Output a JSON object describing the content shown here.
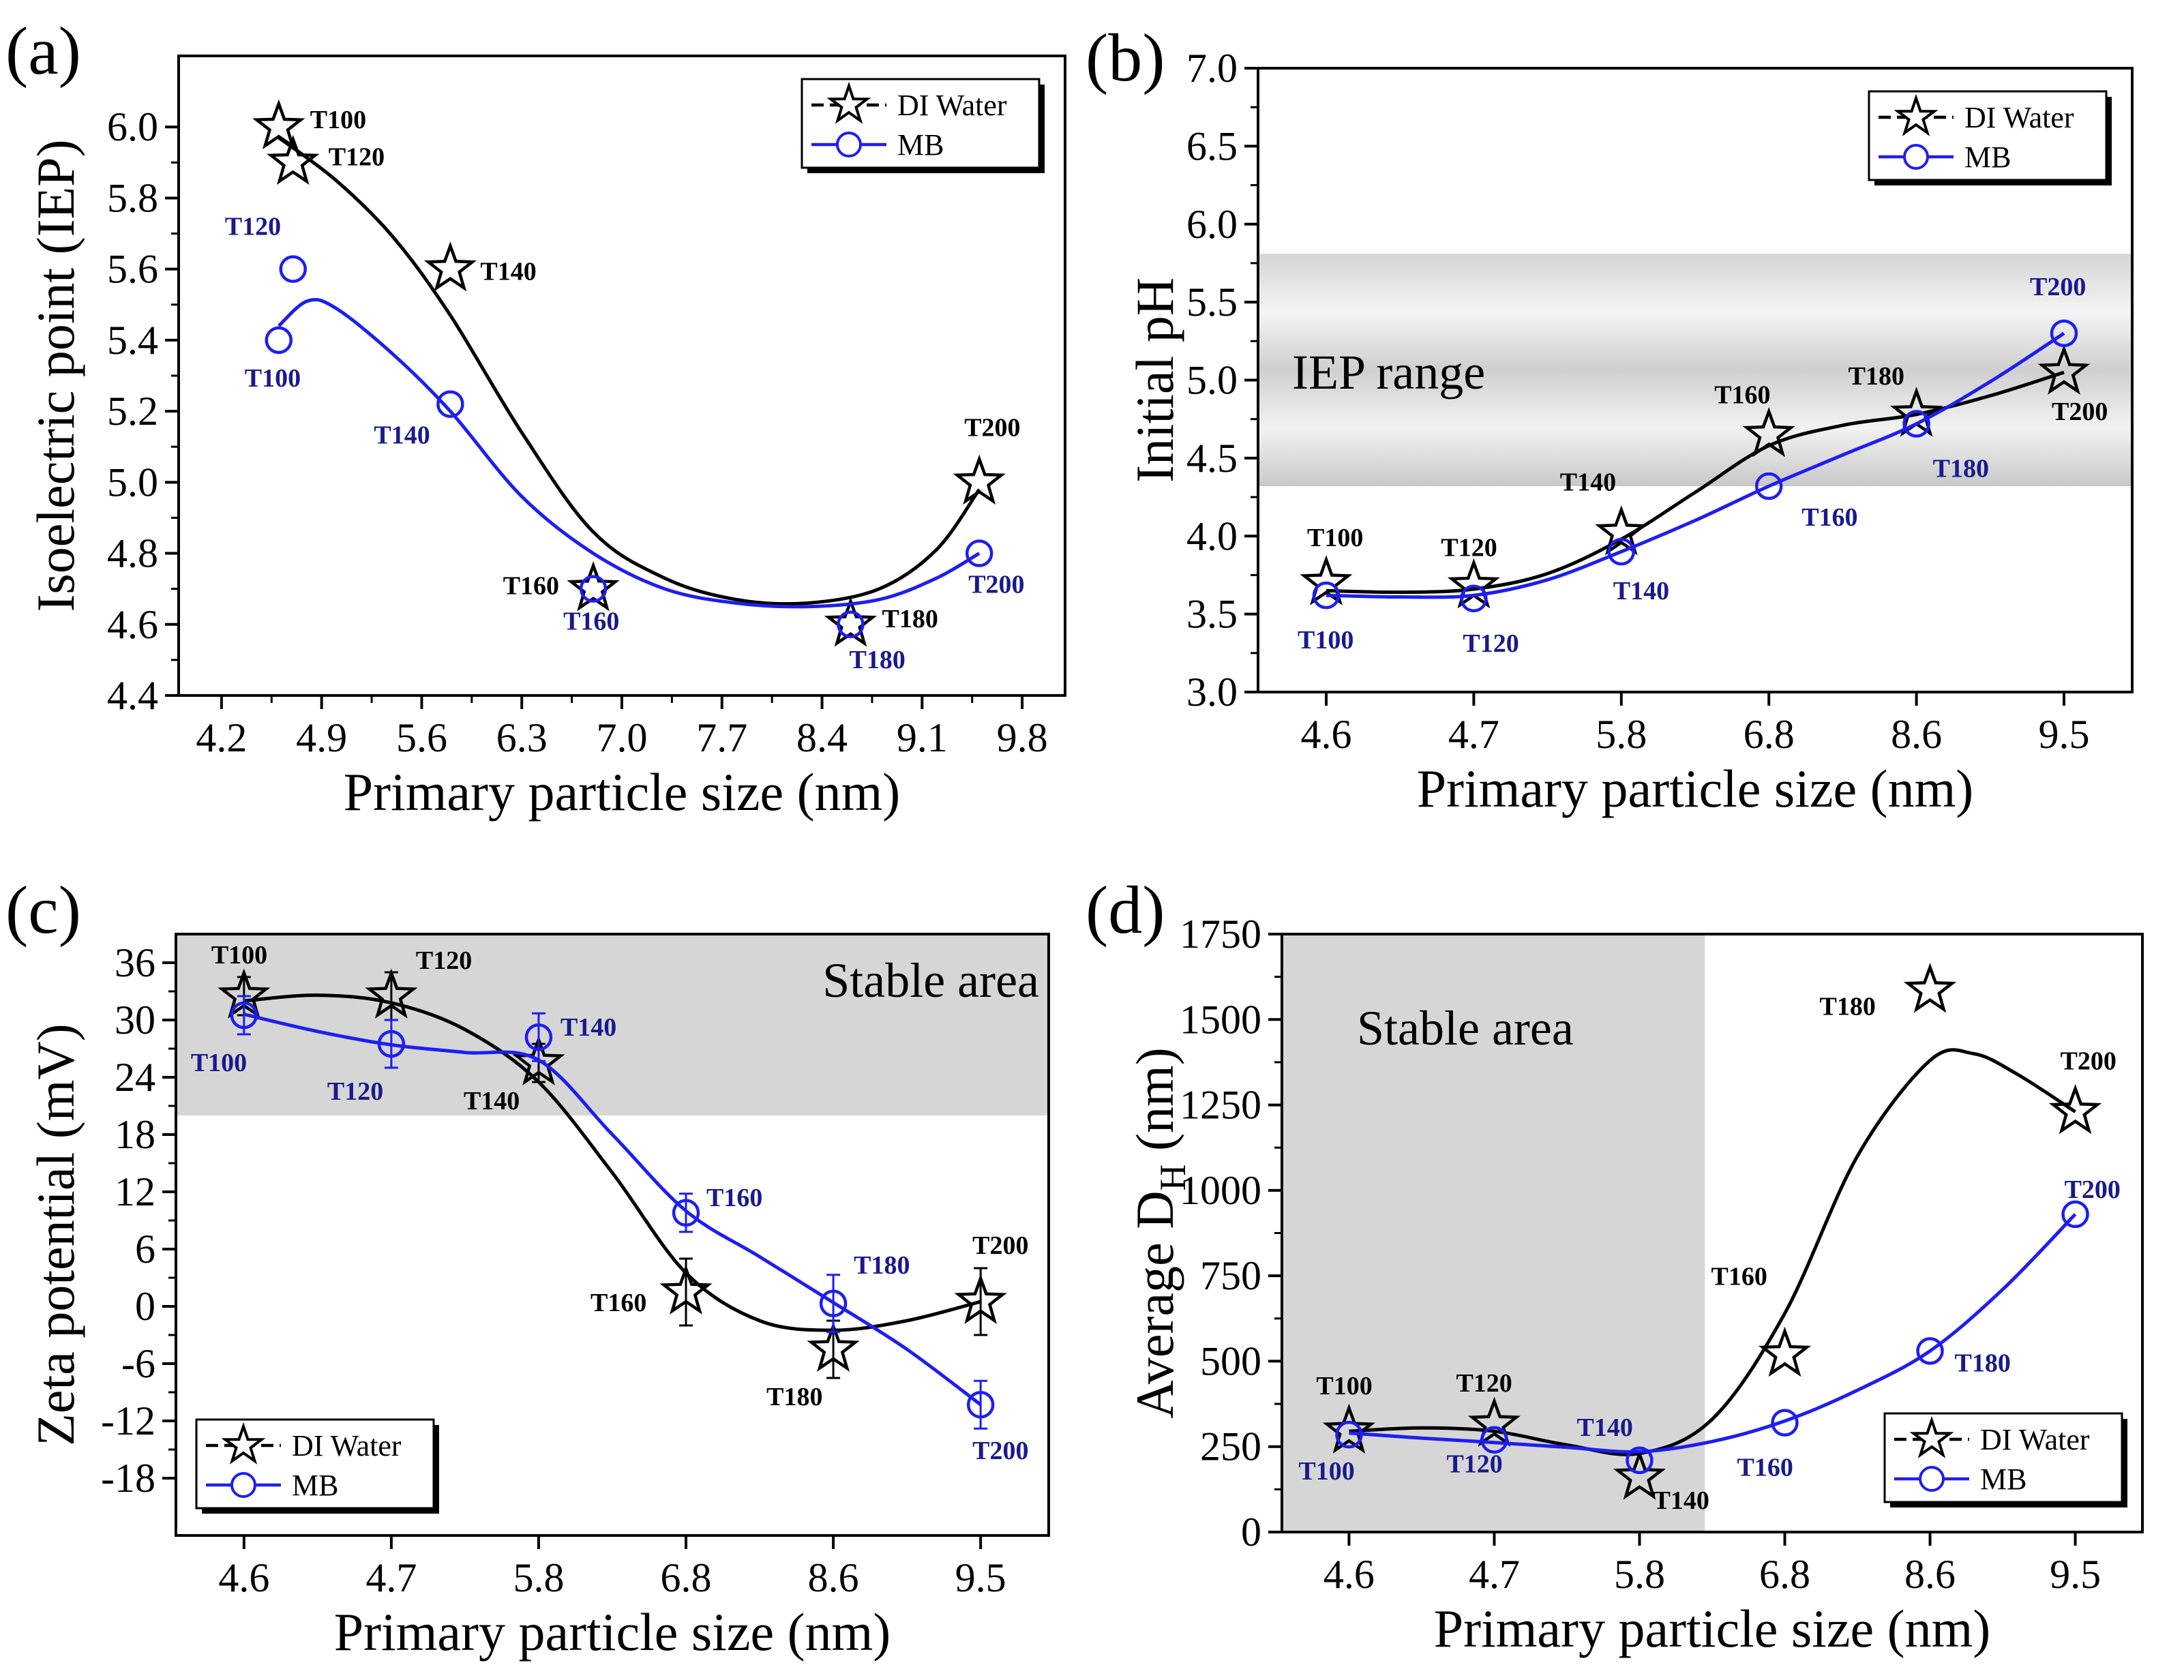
{
  "figure": {
    "colors": {
      "di": "#000000",
      "mb": "#1e1ef0",
      "mb_label": "#1a1a8c",
      "shade": "#d6d6d6"
    },
    "icons": {
      "di_marker": "star-icon",
      "mb_marker": "circle-icon"
    }
  },
  "chart_data": [
    {
      "panel": "(a)",
      "type": "line",
      "xlabel": "Primary particle size (nm)",
      "ylabel": "Isoelectric point (IEP)",
      "xlim": [
        3.9,
        10.1
      ],
      "ylim": [
        4.4,
        6.2
      ],
      "xticks": [
        4.2,
        4.9,
        5.6,
        6.3,
        7.0,
        7.7,
        8.4,
        9.1,
        9.8
      ],
      "xtick_labels": [
        "4.2",
        "4.9",
        "5.6",
        "6.3",
        "7.0",
        "7.7",
        "8.4",
        "9.1",
        "9.8"
      ],
      "yticks": [
        4.4,
        4.6,
        4.8,
        5.0,
        5.2,
        5.4,
        5.6,
        5.8,
        6.0
      ],
      "ytick_labels": [
        "4.4",
        "4.6",
        "4.8",
        "5.0",
        "5.2",
        "5.4",
        "5.6",
        "5.8",
        "6.0"
      ],
      "legend": {
        "position": "top-right",
        "entries": [
          "DI Water",
          "MB"
        ]
      },
      "series": [
        {
          "name": "DI Water",
          "marker": "star",
          "color": "#000000",
          "x": [
            4.6,
            4.7,
            5.8,
            6.8,
            8.6,
            9.5
          ],
          "y": [
            6.0,
            5.9,
            5.6,
            4.7,
            4.6,
            5.0
          ],
          "labels": [
            "T100",
            "T120",
            "T140",
            "T160",
            "T180",
            "T200"
          ],
          "curve": [
            [
              4.6,
              5.97
            ],
            [
              5.0,
              5.85
            ],
            [
              5.4,
              5.69
            ],
            [
              5.8,
              5.47
            ],
            [
              6.3,
              5.14
            ],
            [
              6.8,
              4.86
            ],
            [
              7.3,
              4.73
            ],
            [
              7.8,
              4.67
            ],
            [
              8.3,
              4.66
            ],
            [
              8.8,
              4.7
            ],
            [
              9.2,
              4.81
            ],
            [
              9.5,
              4.98
            ]
          ]
        },
        {
          "name": "MB",
          "marker": "circle",
          "color": "#1e1ef0",
          "x": [
            4.6,
            4.7,
            5.8,
            6.8,
            8.6,
            9.5
          ],
          "y": [
            5.4,
            5.6,
            5.22,
            4.7,
            4.6,
            4.8
          ],
          "labels": [
            "T100",
            "T120",
            "T140",
            "T160",
            "T180",
            "T200"
          ],
          "curve": [
            [
              4.6,
              5.44
            ],
            [
              4.8,
              5.51
            ],
            [
              5.0,
              5.49
            ],
            [
              5.4,
              5.36
            ],
            [
              5.8,
              5.2
            ],
            [
              6.3,
              4.96
            ],
            [
              6.8,
              4.8
            ],
            [
              7.3,
              4.7
            ],
            [
              7.8,
              4.66
            ],
            [
              8.3,
              4.65
            ],
            [
              8.8,
              4.67
            ],
            [
              9.2,
              4.73
            ],
            [
              9.5,
              4.8
            ]
          ]
        }
      ]
    },
    {
      "panel": "(b)",
      "type": "line",
      "xlabel": "Primary particle size (nm)",
      "ylabel": "Initial pH",
      "categorical_x": true,
      "categories": [
        "4.6",
        "4.7",
        "5.8",
        "6.8",
        "8.6",
        "9.5"
      ],
      "ylim": [
        3.0,
        7.0
      ],
      "yticks": [
        3.0,
        3.5,
        4.0,
        4.5,
        5.0,
        5.5,
        6.0,
        6.5,
        7.0
      ],
      "ytick_labels": [
        "3.0",
        "3.5",
        "4.0",
        "4.5",
        "5.0",
        "5.5",
        "6.0",
        "6.5",
        "7.0"
      ],
      "region": {
        "label": "IEP range",
        "y_from": 4.32,
        "y_to": 5.81
      },
      "legend": {
        "position": "top-right",
        "entries": [
          "DI Water",
          "MB"
        ]
      },
      "series": [
        {
          "name": "DI Water",
          "marker": "star",
          "color": "#000000",
          "y": [
            3.7,
            3.68,
            4.02,
            4.65,
            4.78,
            5.05
          ],
          "labels": [
            "T100",
            "T120",
            "T140",
            "T160",
            "T180",
            "T200"
          ],
          "curve": [
            [
              0,
              3.65
            ],
            [
              0.5,
              3.64
            ],
            [
              1,
              3.66
            ],
            [
              1.5,
              3.76
            ],
            [
              2,
              3.98
            ],
            [
              2.5,
              4.28
            ],
            [
              3,
              4.58
            ],
            [
              3.5,
              4.71
            ],
            [
              4,
              4.78
            ],
            [
              4.5,
              4.9
            ],
            [
              5,
              5.05
            ]
          ]
        },
        {
          "name": "MB",
          "marker": "circle",
          "color": "#1e1ef0",
          "y": [
            3.62,
            3.6,
            3.9,
            4.32,
            4.72,
            5.3
          ],
          "labels": [
            "T100",
            "T120",
            "T140",
            "T160",
            "T180",
            "T200"
          ],
          "curve": [
            [
              0,
              3.62
            ],
            [
              0.5,
              3.61
            ],
            [
              1,
              3.62
            ],
            [
              1.5,
              3.72
            ],
            [
              2,
              3.9
            ],
            [
              2.5,
              4.1
            ],
            [
              3,
              4.32
            ],
            [
              3.5,
              4.52
            ],
            [
              4,
              4.72
            ],
            [
              4.5,
              4.99
            ],
            [
              5,
              5.3
            ]
          ]
        }
      ]
    },
    {
      "panel": "(c)",
      "type": "line",
      "xlabel": "Primary particle size (nm)",
      "ylabel": "Zeta potential (mV)",
      "categorical_x": true,
      "categories": [
        "4.6",
        "4.7",
        "5.8",
        "6.8",
        "8.6",
        "9.5"
      ],
      "ylim": [
        -24,
        39
      ],
      "yticks": [
        -18,
        -12,
        -6,
        0,
        6,
        12,
        18,
        24,
        30,
        36
      ],
      "ytick_labels": [
        "-18",
        "-12",
        "-6",
        "0",
        "6",
        "12",
        "18",
        "24",
        "30",
        "36"
      ],
      "region": {
        "label": "Stable area",
        "y_from": 20,
        "y_to": 39
      },
      "legend": {
        "position": "bottom-left",
        "entries": [
          "DI Water",
          "MB"
        ]
      },
      "series": [
        {
          "name": "DI Water",
          "marker": "star",
          "color": "#000000",
          "y": [
            32.5,
            32.5,
            25.5,
            1.5,
            -4.5,
            0.5
          ],
          "error": [
            2,
            2.5,
            2,
            3.5,
            3,
            3.5
          ],
          "labels": [
            "T100",
            "T120",
            "T140",
            "T160",
            "T180",
            "T200"
          ],
          "curve": [
            [
              0,
              32.0
            ],
            [
              0.5,
              32.6
            ],
            [
              1,
              31.8
            ],
            [
              1.5,
              29.0
            ],
            [
              2,
              23.5
            ],
            [
              2.5,
              14.0
            ],
            [
              3,
              3.5
            ],
            [
              3.5,
              -1.5
            ],
            [
              4,
              -2.5
            ],
            [
              4.5,
              -1.5
            ],
            [
              5,
              0.5
            ]
          ]
        },
        {
          "name": "MB",
          "marker": "circle",
          "color": "#1e1ef0",
          "y": [
            30.5,
            27.5,
            28.2,
            9.8,
            0.3,
            -10.3
          ],
          "error": [
            2,
            2.5,
            2.5,
            2,
            3,
            2.5
          ],
          "labels": [
            "T100",
            "T120",
            "T140",
            "T160",
            "T180",
            "T200"
          ],
          "curve": [
            [
              0,
              30.6
            ],
            [
              0.5,
              28.8
            ],
            [
              1,
              27.4
            ],
            [
              1.5,
              26.6
            ],
            [
              2,
              25.8
            ],
            [
              2.5,
              18.0
            ],
            [
              3,
              10.0
            ],
            [
              3.5,
              5.2
            ],
            [
              4,
              0.4
            ],
            [
              4.5,
              -4.5
            ],
            [
              5,
              -10.3
            ]
          ]
        }
      ]
    },
    {
      "panel": "(d)",
      "type": "line",
      "xlabel": "Primary particle size (nm)",
      "ylabel": "Average D",
      "ylabel_sub": "H",
      "ylabel_unit": " (nm)",
      "categorical_x": true,
      "categories": [
        "4.6",
        "4.7",
        "5.8",
        "6.8",
        "8.6",
        "9.5"
      ],
      "ylim": [
        0,
        1750
      ],
      "yticks": [
        0,
        250,
        500,
        750,
        1000,
        1250,
        1500,
        1750
      ],
      "ytick_labels": [
        "0",
        "250",
        "500",
        "750",
        "1000",
        "1250",
        "1500",
        "1750"
      ],
      "region": {
        "label": "Stable area",
        "x_to_category": 2.45
      },
      "legend": {
        "position": "bottom-right",
        "entries": [
          "DI Water",
          "MB"
        ]
      },
      "series": [
        {
          "name": "DI Water",
          "marker": "star",
          "color": "#000000",
          "y": [
            295,
            315,
            160,
            520,
            1585,
            1230
          ],
          "labels": [
            "T100",
            "T120",
            "T140",
            "T160",
            "T180",
            "T200"
          ],
          "curve": [
            [
              0,
              295
            ],
            [
              0.5,
              305
            ],
            [
              1,
              295
            ],
            [
              1.5,
              255
            ],
            [
              2,
              230
            ],
            [
              2.5,
              330
            ],
            [
              3,
              640
            ],
            [
              3.5,
              1100
            ],
            [
              4,
              1380
            ],
            [
              4.3,
              1400
            ],
            [
              4.6,
              1340
            ],
            [
              5,
              1230
            ]
          ]
        },
        {
          "name": "MB",
          "marker": "circle",
          "color": "#1e1ef0",
          "y": [
            285,
            270,
            210,
            320,
            530,
            930
          ],
          "labels": [
            "T100",
            "T120",
            "T140",
            "T160",
            "T180",
            "T200"
          ],
          "curve": [
            [
              0,
              290
            ],
            [
              0.5,
              275
            ],
            [
              1,
              262
            ],
            [
              1.5,
              248
            ],
            [
              2,
              235
            ],
            [
              2.5,
              265
            ],
            [
              3,
              325
            ],
            [
              3.5,
              415
            ],
            [
              4,
              530
            ],
            [
              4.5,
              710
            ],
            [
              5,
              930
            ]
          ]
        }
      ]
    }
  ]
}
